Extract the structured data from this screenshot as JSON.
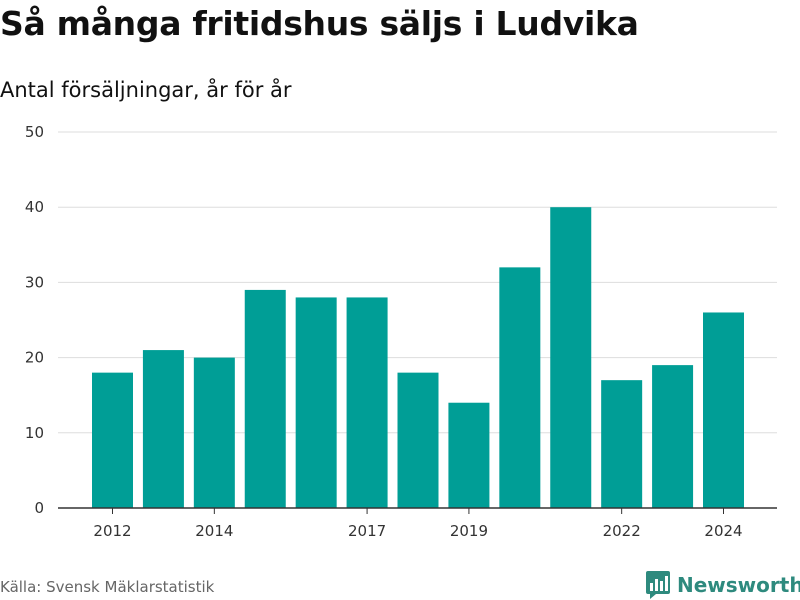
{
  "title": "Så många fritidshus säljs i Ludvika",
  "subtitle": "Antal försäljningar, år för år",
  "source": "Källa: Svensk Mäklarstatistik",
  "brand": {
    "name": "Newsworthy",
    "icon": "newsworthy-logo-icon",
    "color": "#2e8a7e"
  },
  "colors": {
    "bar": "#009e96",
    "grid": "#dddddd",
    "axis": "#333333"
  },
  "chart_data": {
    "type": "bar",
    "categories": [
      2012,
      2013,
      2014,
      2015,
      2016,
      2017,
      2018,
      2019,
      2020,
      2021,
      2022,
      2023,
      2024
    ],
    "values": [
      18,
      21,
      20,
      29,
      28,
      28,
      18,
      14,
      32,
      40,
      17,
      19,
      26
    ],
    "x_tick_labels": [
      "2012",
      "2014",
      "2017",
      "2019",
      "2022",
      "2024"
    ],
    "y_ticks": [
      0,
      10,
      20,
      30,
      40,
      50
    ],
    "ylim": [
      0,
      50
    ],
    "xlabel": "",
    "ylabel": "",
    "grid": true,
    "legend": "none"
  }
}
